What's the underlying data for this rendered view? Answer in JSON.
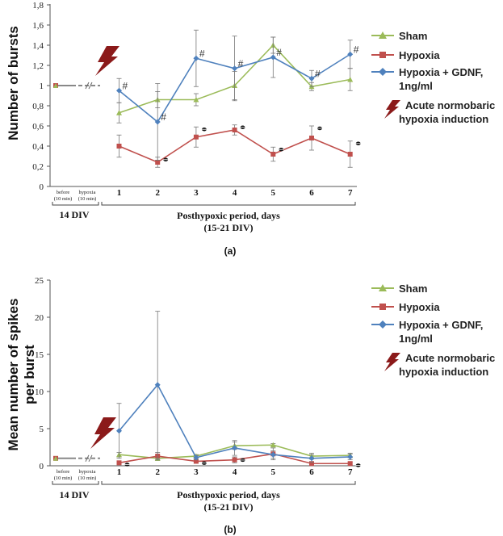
{
  "colors": {
    "sham": "#9bbb59",
    "hypoxia": "#c0504d",
    "gdnf": "#4f81bd",
    "bolt": "#8b1a1a",
    "error": "#777777"
  },
  "icons": {
    "bolt": "lightning-bolt-icon",
    "sig_star": "asterisk-marker-icon"
  },
  "legend": {
    "sham": "Sham",
    "hypoxia": "Hypoxia",
    "gdnf_line1": "Hypoxia + GDNF,",
    "gdnf_line2": "1ng/ml",
    "acute_line1": "Acute normobaric",
    "acute_line2": "hypoxia induction"
  },
  "common": {
    "before_line1": "before",
    "before_line2": "(10 min)",
    "hypoxia_line1": "hypoxia",
    "hypoxia_line2": "(10 min)",
    "div14": "14 DIV",
    "period_line1": "Posthypoxic period, days",
    "period_line2": "(15-21 DIV)",
    "day_labels": [
      "1",
      "2",
      "3",
      "4",
      "5",
      "6",
      "7"
    ]
  },
  "chart_data": [
    {
      "panel": "(a)",
      "type": "line",
      "ylabel": "Number of bursts",
      "ylim": [
        0,
        1.8
      ],
      "yticks": [
        0,
        0.2,
        0.4,
        0.6,
        0.8,
        1,
        1.2,
        1.4,
        1.6,
        1.8
      ],
      "ytick_labels": [
        "0",
        "0,2",
        "0,4",
        "0,6",
        "0,8",
        "1",
        "1,2",
        "1,4",
        "1,6",
        "1,8"
      ],
      "baseline": 1,
      "x": [
        1,
        2,
        3,
        4,
        5,
        6,
        7
      ],
      "series": [
        {
          "name": "Sham",
          "key": "sham",
          "values": [
            0.73,
            0.86,
            0.86,
            1.0,
            1.4,
            0.99,
            1.06
          ],
          "errors": [
            0.1,
            0.08,
            0.06,
            0.14,
            0.08,
            0.04,
            0.11
          ]
        },
        {
          "name": "Hypoxia",
          "key": "hypoxia",
          "values": [
            0.4,
            0.24,
            0.49,
            0.56,
            0.32,
            0.48,
            0.32
          ],
          "errors": [
            0.11,
            0.05,
            0.1,
            0.05,
            0.07,
            0.12,
            0.13
          ]
        },
        {
          "name": "Hypoxia + GDNF, 1ng/ml",
          "key": "gdnf",
          "values": [
            0.95,
            0.64,
            1.27,
            1.17,
            1.28,
            1.07,
            1.31
          ],
          "errors": [
            0.12,
            0.38,
            0.28,
            0.32,
            0.2,
            0.08,
            0.14
          ]
        }
      ],
      "hash_markers": [
        1,
        2,
        3,
        4,
        5,
        6,
        7
      ],
      "hash_symbol": "#",
      "star_markers": [
        2,
        3,
        4,
        5,
        6,
        7
      ]
    },
    {
      "panel": "(b)",
      "type": "line",
      "ylabel_line1": "Mean number of spikes",
      "ylabel_line2": "per burst",
      "ylim": [
        0,
        25
      ],
      "yticks": [
        0,
        5,
        10,
        15,
        20,
        25
      ],
      "ytick_labels": [
        "0",
        "5",
        "10",
        "15",
        "20",
        "25"
      ],
      "baseline": 1,
      "x": [
        1,
        2,
        3,
        4,
        5,
        6,
        7
      ],
      "series": [
        {
          "name": "Sham",
          "key": "sham",
          "values": [
            1.5,
            1.0,
            1.3,
            2.7,
            2.8,
            1.3,
            1.4
          ],
          "errors": [
            0.3,
            0.3,
            0.2,
            0.5,
            0.2,
            0.4,
            0.3
          ]
        },
        {
          "name": "Hypoxia",
          "key": "hypoxia",
          "values": [
            0.4,
            1.3,
            0.6,
            0.8,
            1.6,
            0.3,
            0.3
          ],
          "errors": [
            0.2,
            0.5,
            0.2,
            0.4,
            0.8,
            0.2,
            0.2
          ]
        },
        {
          "name": "Hypoxia + GDNF, 1ng/ml",
          "key": "gdnf",
          "values": [
            4.7,
            10.9,
            1.1,
            2.4,
            1.5,
            1.0,
            1.2
          ],
          "errors": [
            3.7,
            9.9,
            0.3,
            1.0,
            0.5,
            0.5,
            0.4
          ]
        }
      ],
      "star_markers": [
        1,
        3,
        4,
        7
      ]
    }
  ]
}
